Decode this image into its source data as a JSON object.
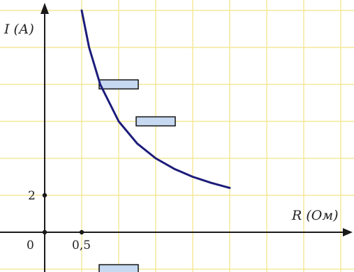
{
  "chart_data": {
    "type": "line",
    "title": "",
    "xlabel": "R (Ом)",
    "ylabel": "I (А)",
    "origin_label": "0",
    "x_tick_labels": [
      {
        "value": 0.5,
        "label": "0,5"
      }
    ],
    "y_tick_labels": [
      {
        "value": 2,
        "label": "2"
      }
    ],
    "xlim": [
      0,
      4
    ],
    "ylim": [
      0,
      12
    ],
    "grid": true,
    "grid_step_x": 0.5,
    "grid_step_y": 2,
    "series": [
      {
        "x": [
          0.5,
          0.6,
          0.75,
          1.0,
          1.25,
          1.5,
          1.75,
          2.0,
          2.25,
          2.5
        ],
        "values": [
          12.0,
          10.0,
          8.0,
          6.0,
          4.8,
          4.0,
          3.43,
          3.0,
          2.67,
          2.4
        ],
        "color": "#1c1c7a"
      }
    ],
    "answer_boxes": [
      {
        "x": 1.0,
        "y": 8.0
      },
      {
        "x": 1.5,
        "y": 6.0
      },
      {
        "x": 1.0,
        "y": -2.0
      }
    ],
    "colors": {
      "grid": "#f3e89a",
      "axis": "#1a1a1a",
      "box_fill": "#c6d9f1",
      "box_stroke": "#111111"
    }
  }
}
